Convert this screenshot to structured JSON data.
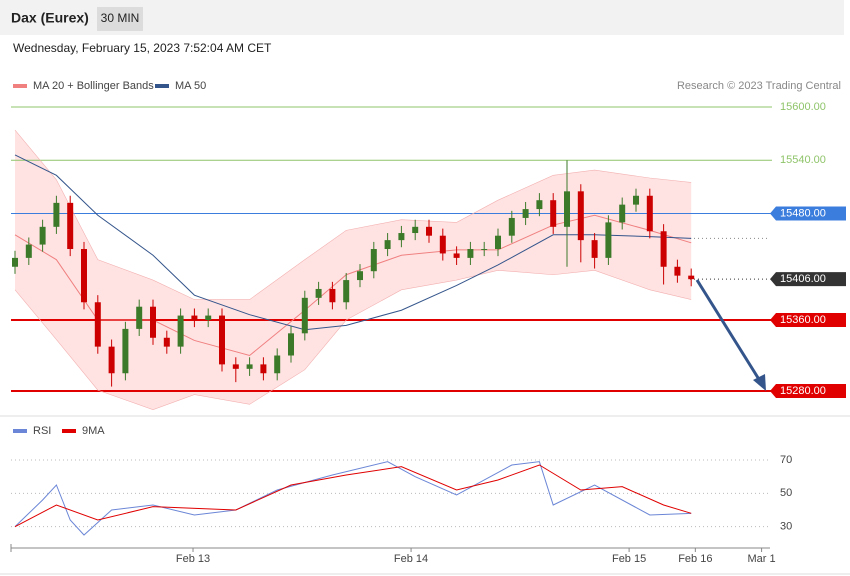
{
  "header": {
    "title": "Dax (Eurex)",
    "interval": "30 MIN",
    "timestamp": "Wednesday, February 15, 2023 7:52:04 AM CET"
  },
  "chart_data": {
    "type": "candlestick",
    "legend": [
      "MA 20 + Bollinger Bands",
      "MA 50"
    ],
    "credit": "Research © 2023 Trading Central",
    "up_color": "#3c7a2a",
    "down_color": "#cc0000",
    "open": [
      15420,
      15430,
      15445,
      15465,
      15492,
      15440,
      15380,
      15330,
      15300,
      15350,
      15375,
      15340,
      15330,
      15365,
      15360,
      15365,
      15310,
      15305,
      15310,
      15300,
      15320,
      15345,
      15385,
      15395,
      15380,
      15405,
      15415,
      15440,
      15450,
      15458,
      15465,
      15455,
      15435,
      15430,
      15440,
      15440,
      15455,
      15475,
      15485,
      15495,
      15465,
      15505,
      15450,
      15430,
      15470,
      15490,
      15500,
      15460,
      15420,
      15410
    ],
    "high": [
      15438,
      15453,
      15473,
      15500,
      15500,
      15448,
      15388,
      15338,
      15358,
      15383,
      15383,
      15348,
      15373,
      15373,
      15373,
      15373,
      15318,
      15318,
      15318,
      15328,
      15353,
      15393,
      15403,
      15403,
      15413,
      15423,
      15448,
      15458,
      15466,
      15473,
      15473,
      15463,
      15443,
      15448,
      15448,
      15463,
      15483,
      15493,
      15503,
      15503,
      15540,
      15513,
      15458,
      15478,
      15498,
      15508,
      15508,
      15468,
      15428,
      15418
    ],
    "low": [
      15412,
      15422,
      15437,
      15457,
      15432,
      15372,
      15322,
      15285,
      15292,
      15342,
      15332,
      15322,
      15322,
      15352,
      15352,
      15302,
      15290,
      15297,
      15292,
      15292,
      15312,
      15337,
      15377,
      15372,
      15372,
      15397,
      15407,
      15432,
      15442,
      15450,
      15447,
      15427,
      15422,
      15422,
      15432,
      15432,
      15447,
      15467,
      15477,
      15457,
      15420,
      15425,
      15418,
      15422,
      15462,
      15482,
      15452,
      15400,
      15402,
      15398
    ],
    "close": [
      15430,
      15445,
      15465,
      15492,
      15440,
      15380,
      15330,
      15300,
      15350,
      15375,
      15340,
      15330,
      15365,
      15360,
      15365,
      15310,
      15305,
      15310,
      15300,
      15320,
      15345,
      15385,
      15395,
      15380,
      15405,
      15415,
      15440,
      15450,
      15458,
      15465,
      15455,
      15435,
      15430,
      15440,
      15440,
      15455,
      15475,
      15485,
      15495,
      15465,
      15505,
      15450,
      15430,
      15470,
      15490,
      15500,
      15460,
      15420,
      15410,
      15406
    ],
    "overlay_x": [
      1,
      4,
      7,
      11,
      14,
      18,
      22,
      25,
      29,
      33,
      36,
      40,
      43,
      47,
      50
    ],
    "overlays": [
      {
        "name": "upper",
        "color": "#f3b0b0",
        "values": [
          15574,
          15518,
          15428,
          15405,
          15383,
          15383,
          15428,
          15461,
          15473,
          15470,
          15495,
          15523,
          15529,
          15520,
          15515
        ]
      },
      {
        "name": "lower",
        "color": "#f3b0b0",
        "values": [
          15394,
          15338,
          15281,
          15259,
          15276,
          15265,
          15304,
          15360,
          15394,
          15405,
          15416,
          15411,
          15416,
          15394,
          15383
        ]
      },
      {
        "name": "MA 20",
        "color": "#f08080",
        "values": [
          15456,
          15428,
          15360,
          15360,
          15337,
          15320,
          15371,
          15411,
          15433,
          15439,
          15439,
          15467,
          15478,
          15461,
          15447
        ]
      },
      {
        "name": "MA 50",
        "color": "#34558b",
        "values": [
          15546,
          15523,
          15478,
          15433,
          15388,
          15366,
          15349,
          15354,
          15371,
          15399,
          15422,
          15456,
          15456,
          15454,
          15452
        ]
      }
    ],
    "band_color": "#ffe3e3",
    "ylim": [
      15258.6,
      15607.9
    ],
    "yticks": [
      {
        "value": 15600,
        "label": "15600.00",
        "color": "#8fc46a",
        "style": "thin"
      },
      {
        "value": 15540,
        "label": "15540.00",
        "color": "#8fc46a",
        "style": "thin"
      },
      {
        "value": 15480,
        "label": "15480.00",
        "color": "#3b7ddd",
        "style": "box"
      },
      {
        "value": 15406,
        "label": "15406.00",
        "color": "#333333",
        "style": "dotted"
      },
      {
        "value": 15360,
        "label": "15360.00",
        "color": "#e00000",
        "style": "thick"
      },
      {
        "value": 15280,
        "label": "15280.00",
        "color": "#e00000",
        "style": "thick"
      }
    ],
    "xlim": [
      0.71,
      55.71
    ],
    "xticks": [
      {
        "value": 13.9,
        "label": "Feb 13"
      },
      {
        "value": 29.7,
        "label": "Feb 14"
      },
      {
        "value": 45.5,
        "label": "Feb 15"
      },
      {
        "value": 50.3,
        "label": "Feb 16"
      },
      {
        "value": 55.1,
        "label": "Mar 1"
      }
    ],
    "rsi": {
      "legend": [
        "RSI",
        "9MA"
      ],
      "series": [
        {
          "name": "RSI",
          "color": "#6b86d6",
          "x": [
            1,
            3,
            4,
            5,
            6,
            8,
            11,
            14,
            17,
            20,
            24,
            28,
            30,
            33,
            37,
            39,
            40,
            43,
            47,
            50
          ],
          "values": [
            30,
            46,
            55,
            34,
            25,
            40,
            43,
            37,
            40,
            52,
            61,
            69,
            60,
            49,
            67,
            69,
            43,
            55,
            37,
            38
          ]
        },
        {
          "name": "9MA",
          "color": "#e00000",
          "x": [
            1,
            4,
            7,
            11,
            17,
            21,
            25,
            29,
            33,
            36,
            39,
            42,
            45,
            48,
            50
          ],
          "values": [
            30,
            43,
            34,
            42,
            40,
            55,
            61,
            66,
            52,
            58,
            67,
            52,
            54,
            43,
            38
          ]
        }
      ],
      "ylim": [
        22,
        79
      ],
      "yticks": [
        30,
        50,
        70
      ]
    }
  }
}
